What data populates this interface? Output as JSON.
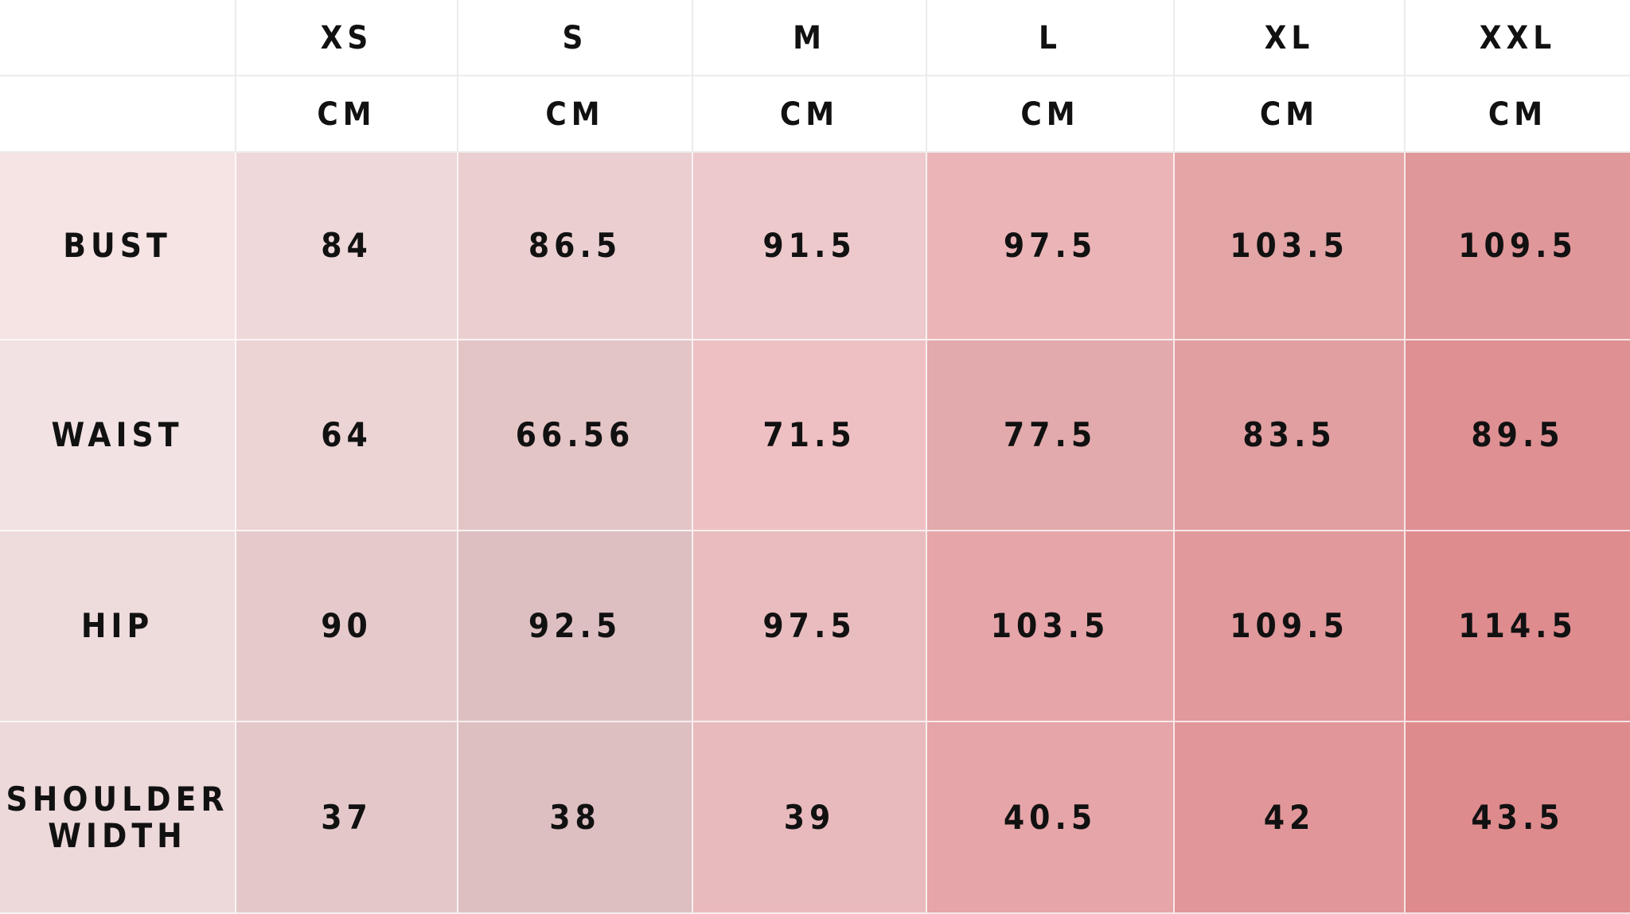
{
  "table": {
    "sizes": [
      "XS",
      "S",
      "M",
      "L",
      "XL",
      "XXL"
    ],
    "units": [
      "CM",
      "CM",
      "CM",
      "CM",
      "CM",
      "CM"
    ],
    "rows": [
      {
        "label": "BUST",
        "values": [
          "84",
          "86.5",
          "91.5",
          "97.5",
          "103.5",
          "109.5"
        ],
        "label_color": "#f6e3e4",
        "colors": [
          "#eed8da",
          "#ebcfd0",
          "#edc9cb",
          "#ebb5b8",
          "#e3a5a6",
          "#e09799"
        ]
      },
      {
        "label": "WAIST",
        "values": [
          "64",
          "66.56",
          "71.5",
          "77.5",
          "83.5",
          "89.5"
        ],
        "label_color": "#f2e2e3",
        "colors": [
          "#ecd3d4",
          "#e4c5c6",
          "#efc0c3",
          "#e2aaac",
          "#e19fa1",
          "#df9093"
        ]
      },
      {
        "label": "HIP",
        "values": [
          "90",
          "92.5",
          "97.5",
          "103.5",
          "109.5",
          "114.5"
        ],
        "label_color": "#eedbdc",
        "colors": [
          "#e6cacb",
          "#ddbfc2",
          "#e9bdbf",
          "#e6a5a9",
          "#e1999b",
          "#de8c8e"
        ]
      },
      {
        "label_lines": [
          "SHOULDER",
          "WIDTH"
        ],
        "values": [
          "37",
          "38",
          "39",
          "40.5",
          "42",
          "43.5"
        ],
        "label_color": "#edd8da",
        "colors": [
          "#e4c8c9",
          "#ddbfc2",
          "#e8babd",
          "#e6a5a8",
          "#e19799",
          "#de8b8d"
        ]
      }
    ]
  }
}
